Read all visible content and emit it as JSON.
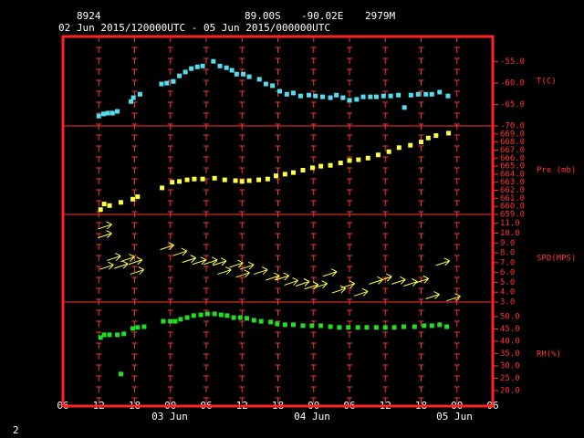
{
  "header": {
    "station": "8924",
    "latitude": "89.00S",
    "longitude": "-90.02E",
    "elevation": "2979M",
    "period": "02 Jun 2015/120000UTC - 05 Jun 2015/000000UTC",
    "dates": [
      "03 Jun",
      "04 Jun",
      "05 Jun"
    ],
    "page": "2"
  },
  "chart_data": [
    {
      "type": "scatter",
      "marker": "square",
      "ylabel": "T(C)",
      "color": "#55ddee",
      "x": [
        6.0,
        6.8,
        7.5,
        8.3,
        9.1,
        11.4,
        11.8,
        12.9,
        16.5,
        17.4,
        18.5,
        19.5,
        20.5,
        21.5,
        22.5,
        23.4,
        25.2,
        26.3,
        27.4,
        28.3,
        29.1,
        30.2,
        31.2,
        32.9,
        34.0,
        35.1,
        36.3,
        37.5,
        38.6,
        39.8,
        41.2,
        42.3,
        43.5,
        44.8,
        45.8,
        46.9,
        48.0,
        49.2,
        50.3,
        51.5,
        52.5,
        53.7,
        54.9,
        56.2,
        57.2,
        58.3,
        59.5,
        60.8,
        61.8,
        63.1,
        64.5
      ],
      "values": [
        -67.7,
        -67.2,
        -67.0,
        -67.0,
        -66.6,
        -64.3,
        -63.4,
        -62.6,
        -60.2,
        -60.0,
        -59.6,
        -58.3,
        -57.4,
        -56.6,
        -56.2,
        -56.0,
        -54.9,
        -56.0,
        -56.4,
        -57.0,
        -57.9,
        -57.9,
        -58.5,
        -59.1,
        -60.2,
        -60.6,
        -61.9,
        -62.6,
        -62.3,
        -63.0,
        -62.8,
        -63.0,
        -63.2,
        -63.4,
        -62.8,
        -63.4,
        -64.0,
        -63.8,
        -63.2,
        -63.2,
        -63.2,
        -63.0,
        -63.0,
        -62.8,
        -65.7,
        -62.8,
        -62.6,
        -62.6,
        -62.6,
        -62.1,
        -63.0
      ],
      "ylim": [
        -70,
        -49.1
      ],
      "yticks": [
        {
          "value": -55,
          "label": "-55.0"
        },
        {
          "value": -60,
          "label": "-60.0"
        },
        {
          "value": -65,
          "label": "-65.0"
        },
        {
          "value": -70,
          "label": "-70.0"
        }
      ]
    },
    {
      "type": "scatter",
      "marker": "square",
      "ylabel": "Pre (mb)",
      "color": "#ffff44",
      "x": [
        6.3,
        6.9,
        7.8,
        9.7,
        11.7,
        12.5,
        16.6,
        18.3,
        19.5,
        20.8,
        22.0,
        23.4,
        25.4,
        27.1,
        28.9,
        30.0,
        31.2,
        32.8,
        34.3,
        35.7,
        37.2,
        38.6,
        40.2,
        41.8,
        43.2,
        44.8,
        46.5,
        48.0,
        49.5,
        51.1,
        52.8,
        54.6,
        56.3,
        58.2,
        60.0,
        61.2,
        62.5,
        64.6
      ],
      "values": [
        659.6,
        660.3,
        660.1,
        660.5,
        660.9,
        661.2,
        662.3,
        663.0,
        663.1,
        663.3,
        663.4,
        663.4,
        663.5,
        663.3,
        663.2,
        663.1,
        663.2,
        663.3,
        663.4,
        663.8,
        664.0,
        664.2,
        664.5,
        664.8,
        665.0,
        665.1,
        665.4,
        665.7,
        665.8,
        666.0,
        666.4,
        666.8,
        667.3,
        667.6,
        668.0,
        668.5,
        668.8,
        669.1
      ],
      "ylim": [
        659,
        670
      ],
      "yticks": [
        {
          "value": 659,
          "label": "659.0"
        },
        {
          "value": 660,
          "label": "660.0"
        },
        {
          "value": 661,
          "label": "661.0"
        },
        {
          "value": 662,
          "label": "662.0"
        },
        {
          "value": 663,
          "label": "663.0"
        },
        {
          "value": 664,
          "label": "664.0"
        },
        {
          "value": 665,
          "label": "665.0"
        },
        {
          "value": 666,
          "label": "666.0"
        },
        {
          "value": 667,
          "label": "667.0"
        },
        {
          "value": 668,
          "label": "668.0"
        },
        {
          "value": 669,
          "label": "669.0"
        }
      ]
    },
    {
      "type": "scatter",
      "marker": "arrow",
      "ylabel": "SPD(MPS)",
      "color": "#ffff44",
      "x": [
        7.1,
        7.1,
        8.6,
        10.9,
        7.4,
        9.8,
        12.2,
        12.5,
        17.5,
        19.7,
        21.2,
        22.9,
        24.8,
        26.3,
        27.1,
        29.1,
        30.2,
        30.9,
        33.2,
        35.2,
        36.8,
        38.3,
        40.2,
        41.7,
        43.2,
        44.8,
        46.3,
        47.8,
        50.0,
        52.5,
        54.0,
        56.3,
        58.3,
        60.2,
        62.0,
        63.7,
        65.5
      ],
      "values": [
        10.7,
        9.8,
        7.5,
        7.4,
        6.6,
        6.7,
        7.1,
        6.1,
        8.6,
        8.0,
        7.3,
        7.1,
        7.1,
        7.0,
        6.1,
        6.8,
        5.8,
        6.6,
        6.1,
        5.5,
        5.5,
        5.0,
        4.9,
        4.6,
        4.7,
        5.9,
        4.2,
        4.7,
        3.9,
        5.1,
        5.4,
        5.1,
        4.9,
        5.2,
        3.6,
        7.0,
        3.4
      ],
      "ylim": [
        3,
        11.9
      ],
      "yticks": [
        {
          "value": 3,
          "label": "3.0"
        },
        {
          "value": 4,
          "label": "4.0"
        },
        {
          "value": 5,
          "label": "5.0"
        },
        {
          "value": 6,
          "label": "6.0"
        },
        {
          "value": 7,
          "label": "7.0"
        },
        {
          "value": 8,
          "label": "8.0"
        },
        {
          "value": 9,
          "label": "9.0"
        },
        {
          "value": 10,
          "label": "10.0"
        },
        {
          "value": 11,
          "label": "11.0"
        }
      ]
    },
    {
      "type": "scatter",
      "marker": "square",
      "ylabel": "RH(%)",
      "color": "#22dd22",
      "x": [
        6.3,
        6.9,
        7.8,
        9.1,
        9.7,
        10.2,
        11.7,
        12.5,
        13.6,
        16.8,
        18.0,
        18.8,
        19.7,
        20.8,
        21.9,
        23.1,
        24.2,
        25.4,
        26.5,
        27.5,
        28.6,
        29.7,
        30.8,
        32.0,
        33.2,
        34.8,
        35.9,
        37.2,
        38.6,
        40.2,
        41.7,
        43.2,
        44.8,
        46.3,
        47.8,
        49.4,
        50.9,
        52.5,
        54.0,
        55.5,
        57.1,
        58.9,
        60.5,
        61.8,
        63.1,
        64.3
      ],
      "values": [
        41.5,
        42.6,
        42.6,
        42.6,
        26.7,
        43.0,
        45.2,
        45.6,
        45.9,
        48.1,
        48.1,
        48.1,
        48.9,
        49.6,
        50.4,
        50.7,
        51.1,
        51.1,
        50.7,
        50.4,
        49.6,
        49.6,
        49.3,
        48.5,
        48.1,
        47.8,
        47.0,
        46.7,
        46.7,
        46.3,
        46.3,
        46.3,
        45.9,
        45.6,
        45.6,
        45.6,
        45.6,
        45.6,
        45.6,
        45.6,
        45.9,
        45.9,
        46.3,
        46.3,
        46.7,
        45.9
      ],
      "ylim": [
        13.7,
        55.9
      ],
      "yticks": [
        {
          "value": 20,
          "label": "20.0"
        },
        {
          "value": 25,
          "label": "25.0"
        },
        {
          "value": 30,
          "label": "30.0"
        },
        {
          "value": 35,
          "label": "35.0"
        },
        {
          "value": 40,
          "label": "40.0"
        },
        {
          "value": 45,
          "label": "45.0"
        },
        {
          "value": 50,
          "label": "50.0"
        }
      ],
      "xlim": [
        0,
        72
      ],
      "xticks": [
        {
          "value": 0,
          "label": "06"
        },
        {
          "value": 6,
          "label": "12"
        },
        {
          "value": 12,
          "label": "18"
        },
        {
          "value": 18,
          "label": "00"
        },
        {
          "value": 24,
          "label": "06"
        },
        {
          "value": 30,
          "label": "12"
        },
        {
          "value": 36,
          "label": "18"
        },
        {
          "value": 42,
          "label": "00"
        },
        {
          "value": 48,
          "label": "06"
        },
        {
          "value": 54,
          "label": "12"
        },
        {
          "value": 60,
          "label": "18"
        },
        {
          "value": 66,
          "label": "00"
        },
        {
          "value": 72,
          "label": "06"
        }
      ]
    }
  ]
}
